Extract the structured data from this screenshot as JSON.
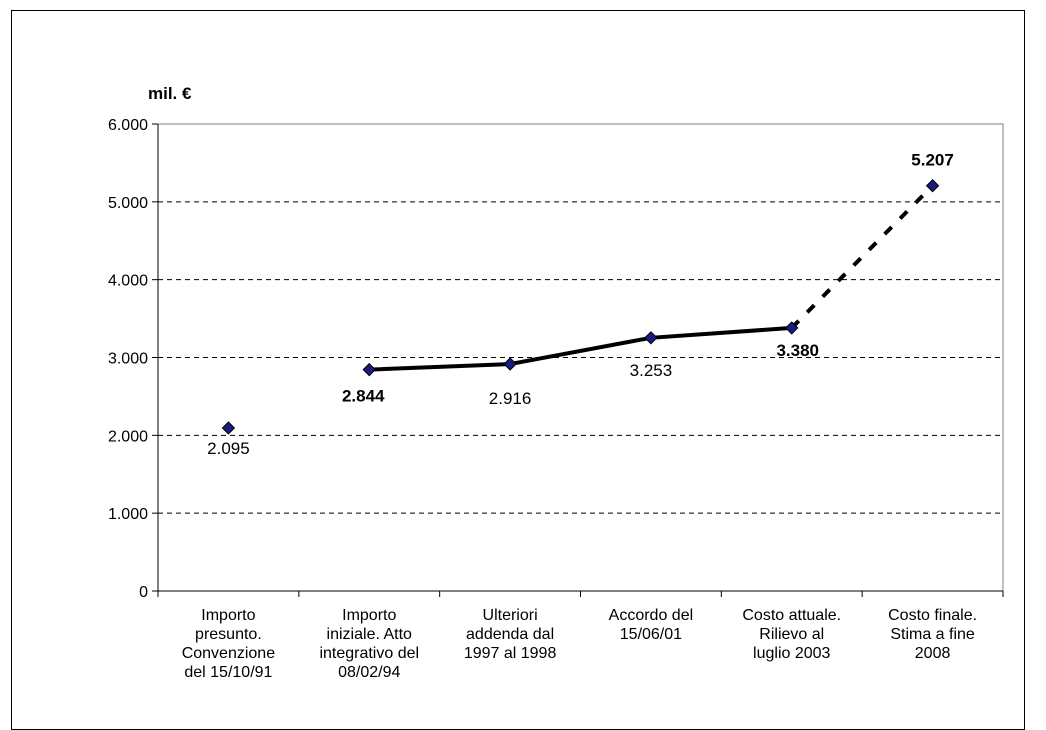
{
  "chart_data": {
    "type": "line",
    "unit_label": "mil. €",
    "ylim": [
      0,
      6000
    ],
    "yticks": [
      0,
      1000,
      2000,
      3000,
      4000,
      5000,
      6000
    ],
    "ytick_labels": [
      "0",
      "1.000",
      "2.000",
      "3.000",
      "4.000",
      "5.000",
      "6.000"
    ],
    "grid": "horizontal dashed",
    "categories": [
      "Importo presunto. Convenzione del 15/10/91",
      "Importo iniziale. Atto integrativo del 08/02/94",
      "Ulteriori addenda dal 1997 al 1998",
      "Accordo del 15/06/01",
      "Costo attuale. Rilievo al luglio 2003",
      "Costo finale. Stima a fine 2008"
    ],
    "category_lines": [
      "Importo\npresunto.\nConvenzione\ndel 15/10/91",
      "Importo\niniziale. Atto\nintegrativo del\n08/02/94",
      "Ulteriori\naddenda  dal\n1997 al 1998",
      "Accordo del\n15/06/01",
      "Costo attuale.\nRilievo al\nluglio 2003",
      "Costo finale.\nStima a fine\n2008"
    ],
    "values": [
      2095,
      2844,
      2916,
      3253,
      3380,
      5207
    ],
    "value_labels": [
      "2.095",
      "2.844",
      "2.916",
      "3.253",
      "3.380",
      "5.207"
    ],
    "bold_labels": [
      false,
      true,
      false,
      false,
      true,
      true
    ],
    "segments": [
      {
        "from": 1,
        "to": 4,
        "style": "solid"
      },
      {
        "from": 4,
        "to": 5,
        "style": "dashed"
      }
    ],
    "colors": {
      "line": "#000000",
      "marker": "#1a1a80",
      "grid": "#000000"
    }
  }
}
